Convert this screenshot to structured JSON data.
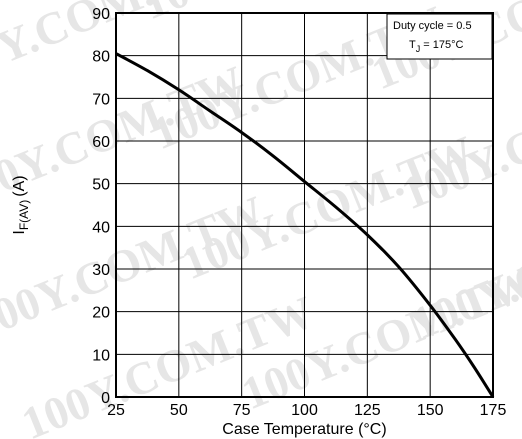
{
  "chart_data": {
    "type": "line",
    "xlabel": "Case Temperature (°C)",
    "ylabel": {
      "main": "I",
      "sub": "F(AV)",
      "unit": "(A)"
    },
    "xlim": [
      25,
      175
    ],
    "ylim": [
      0,
      90
    ],
    "xticks": [
      25,
      50,
      75,
      100,
      125,
      150,
      175
    ],
    "yticks": [
      0,
      10,
      20,
      30,
      40,
      50,
      60,
      70,
      80,
      90
    ],
    "grid": true,
    "legend": {
      "placement": "top-right",
      "line1": "Duty cycle = 0.5",
      "line2_main": "T",
      "line2_sub": "J",
      "line2_rest": " = 175°C"
    },
    "watermark": "100Y.COM.TW",
    "series": [
      {
        "x": [
          25,
          37.5,
          50,
          62.5,
          75,
          87.5,
          100,
          112.5,
          125,
          137.5,
          150,
          160,
          167.5,
          175
        ],
        "y": [
          80.5,
          76.5,
          72,
          67,
          62,
          56.5,
          50.5,
          44.5,
          38,
          30.5,
          21.5,
          13.5,
          7,
          0
        ]
      }
    ],
    "colors": {
      "line": "#000000",
      "grid": "#000000",
      "watermark": "#e6e6e6"
    }
  }
}
